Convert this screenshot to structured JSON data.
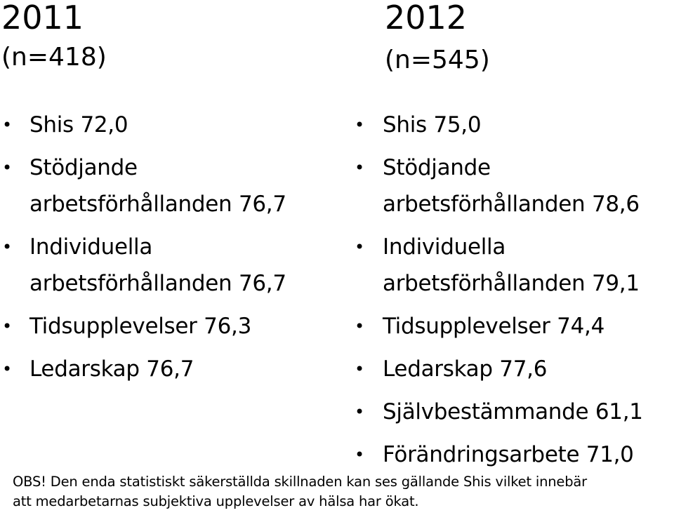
{
  "left": {
    "year": "2011",
    "n": "(n=418)",
    "items": [
      "Shis 72,0",
      "Stödjande arbetsförhållanden 76,7",
      "Individuella arbetsförhållanden 76,7",
      "Tidsupplevelser 76,3",
      "Ledarskap 76,7"
    ],
    "wrapped": [
      [
        "Shis 72,0"
      ],
      [
        "Stödjande",
        "arbetsförhållanden 76,7"
      ],
      [
        "Individuella",
        "arbetsförhållanden 76,7"
      ],
      [
        "Tidsupplevelser 76,3"
      ],
      [
        "Ledarskap 76,7"
      ]
    ]
  },
  "right": {
    "year": "2012",
    "n": "(n=545)",
    "wrapped": [
      [
        "Shis 75,0"
      ],
      [
        "Stödjande",
        "arbetsförhållanden 78,6"
      ],
      [
        "Individuella",
        "arbetsförhållanden 79,1"
      ],
      [
        "Tidsupplevelser 74,4"
      ],
      [
        "Ledarskap 77,6"
      ],
      [
        "Självbestämmande 61,1"
      ],
      [
        "Förändringsarbete 71,0"
      ]
    ]
  },
  "bullet_glyph": "•",
  "note": {
    "line1": "OBS! Den enda statistiskt säkerställda skillnaden kan ses gällande Shis vilket innebär",
    "line2": "att medarbetarnas subjektiva upplevelser av hälsa har ökat."
  }
}
